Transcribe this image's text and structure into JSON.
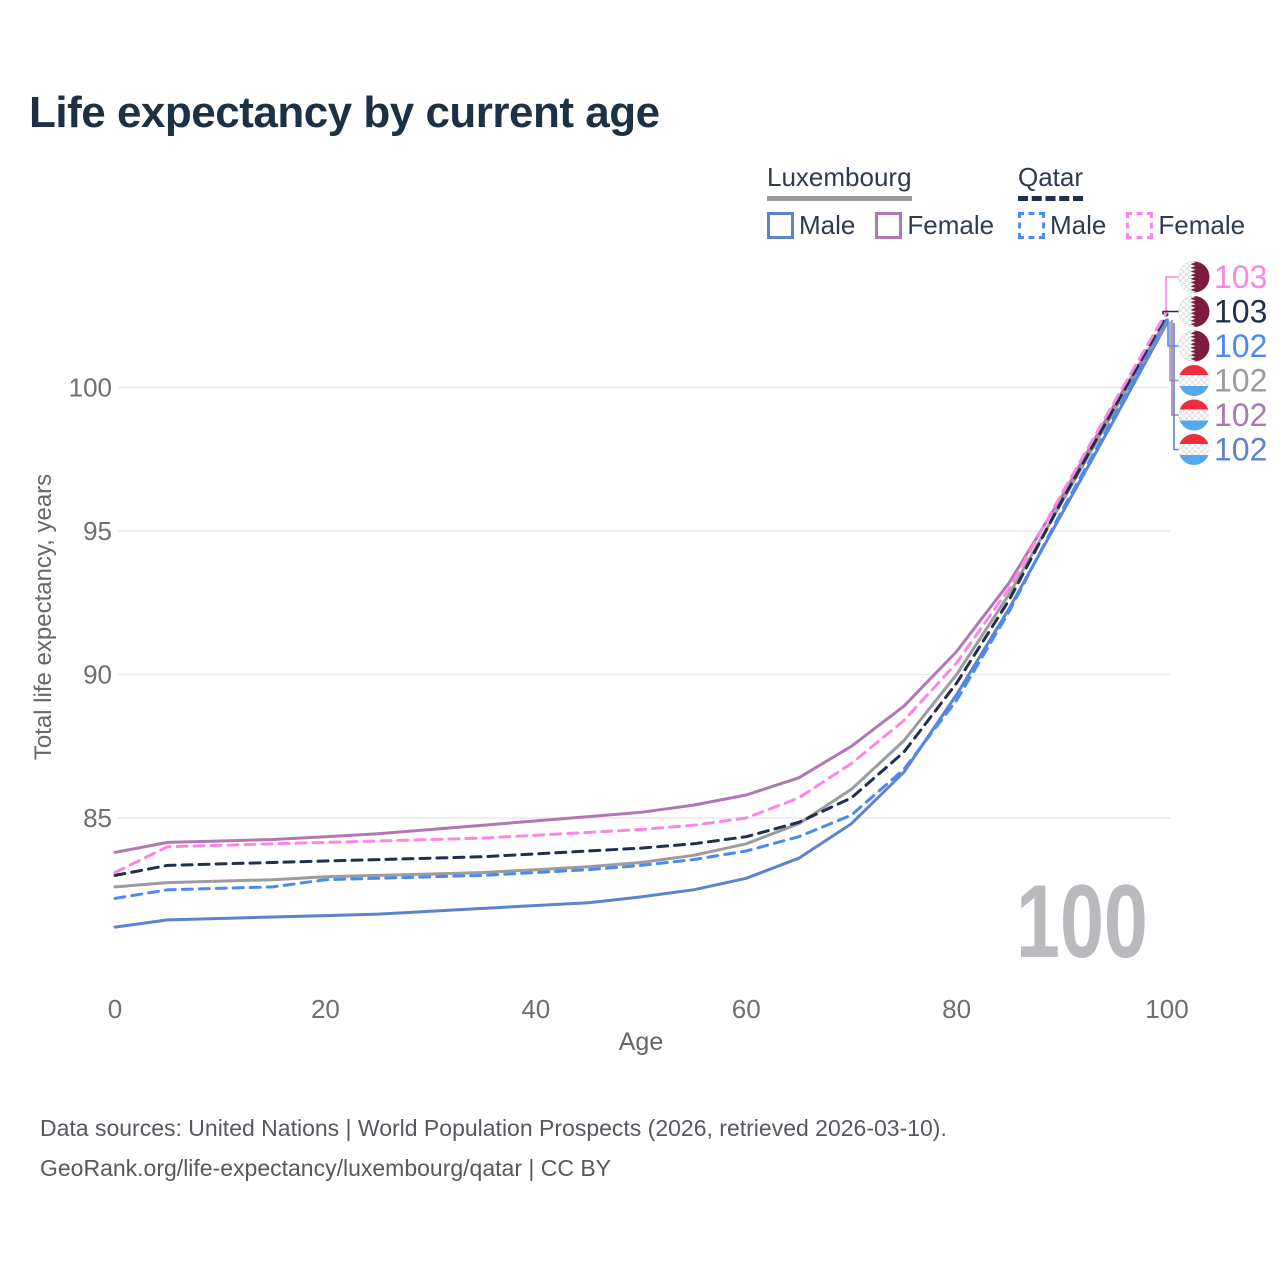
{
  "title": "Life expectancy by current age",
  "legend": {
    "groups": [
      {
        "label": "Luxembourg",
        "line_style": "solid",
        "underline_color": "#9b9ba0",
        "items": [
          {
            "label": "Male",
            "color": "#5b84cc"
          },
          {
            "label": "Female",
            "color": "#b077b4"
          }
        ]
      },
      {
        "label": "Qatar",
        "line_style": "dashed",
        "underline_color": "#20304c",
        "items": [
          {
            "label": "Male",
            "color": "#4b8bf0"
          },
          {
            "label": "Female",
            "color": "#fb86e4"
          }
        ]
      }
    ]
  },
  "chart_data": {
    "type": "line",
    "title": "Life expectancy by current age",
    "xlabel": "Age",
    "ylabel": "Total life expectancy, years",
    "xlim": [
      0,
      100
    ],
    "ylim": [
      80.5,
      104
    ],
    "xticks": [
      0,
      20,
      40,
      60,
      80,
      100
    ],
    "yticks": [
      85,
      90,
      95,
      100
    ],
    "grid": true,
    "legend_position": "top-right",
    "x": [
      0,
      5,
      10,
      15,
      20,
      25,
      30,
      35,
      40,
      45,
      50,
      55,
      60,
      65,
      70,
      75,
      80,
      85,
      90,
      95,
      100
    ],
    "series": [
      {
        "name": "Luxembourg Male",
        "country": "Luxembourg",
        "sex": "Male",
        "color": "#5b84cc",
        "dash": "solid",
        "values": [
          81.2,
          81.45,
          81.5,
          81.55,
          81.6,
          81.65,
          81.75,
          81.85,
          81.95,
          82.05,
          82.25,
          82.5,
          82.9,
          83.6,
          84.8,
          86.6,
          89.3,
          92.3,
          95.6,
          98.9,
          102.25
        ]
      },
      {
        "name": "Luxembourg Total",
        "country": "Luxembourg",
        "sex": "Total",
        "color": "#9b9ba0",
        "dash": "solid",
        "values": [
          82.6,
          82.75,
          82.8,
          82.85,
          82.95,
          83.0,
          83.05,
          83.1,
          83.2,
          83.3,
          83.45,
          83.7,
          84.1,
          84.8,
          86.0,
          87.7,
          90.0,
          92.8,
          96.0,
          99.2,
          102.3
        ]
      },
      {
        "name": "Luxembourg Female",
        "country": "Luxembourg",
        "sex": "Female",
        "color": "#b077b4",
        "dash": "solid",
        "values": [
          83.8,
          84.15,
          84.2,
          84.25,
          84.35,
          84.45,
          84.6,
          84.75,
          84.9,
          85.05,
          85.2,
          85.45,
          85.8,
          86.4,
          87.5,
          88.9,
          90.8,
          93.2,
          96.2,
          99.4,
          102.35
        ]
      },
      {
        "name": "Qatar Male",
        "country": "Qatar",
        "sex": "Male",
        "color": "#4b8bf0",
        "dash": "dashed",
        "values": [
          82.2,
          82.5,
          82.55,
          82.6,
          82.85,
          82.9,
          82.95,
          83.0,
          83.1,
          83.2,
          83.35,
          83.55,
          83.85,
          84.35,
          85.1,
          86.7,
          89.1,
          92.2,
          95.7,
          99.0,
          102.4
        ]
      },
      {
        "name": "Qatar Total",
        "country": "Qatar",
        "sex": "Total",
        "color": "#20304c",
        "dash": "dashed",
        "values": [
          83.0,
          83.35,
          83.4,
          83.45,
          83.5,
          83.55,
          83.6,
          83.65,
          83.75,
          83.85,
          83.95,
          84.1,
          84.35,
          84.85,
          85.7,
          87.3,
          89.7,
          92.6,
          96.05,
          99.3,
          102.55
        ]
      },
      {
        "name": "Qatar Female",
        "country": "Qatar",
        "sex": "Female",
        "color": "#fb86e4",
        "dash": "dashed",
        "values": [
          83.1,
          84.0,
          84.05,
          84.1,
          84.15,
          84.2,
          84.25,
          84.3,
          84.4,
          84.5,
          84.6,
          84.75,
          85.0,
          85.7,
          86.9,
          88.4,
          90.4,
          93.0,
          96.3,
          99.5,
          102.65
        ]
      }
    ],
    "end_labels": [
      {
        "value": "103",
        "series_index": 5,
        "flag": "qatar",
        "color": "#fb86e4"
      },
      {
        "value": "103",
        "series_index": 4,
        "flag": "qatar",
        "color": "#20304c"
      },
      {
        "value": "102",
        "series_index": 3,
        "flag": "qatar",
        "color": "#4b8bf0"
      },
      {
        "value": "102",
        "series_index": 1,
        "flag": "luxembourg",
        "color": "#9b9ba0"
      },
      {
        "value": "102",
        "series_index": 2,
        "flag": "luxembourg",
        "color": "#a87ab2"
      },
      {
        "value": "102",
        "series_index": 0,
        "flag": "luxembourg",
        "color": "#5b84cc"
      }
    ],
    "watermark": "100",
    "flag_colors": {
      "qatar_maroon": "#7d1a3f",
      "lux_red": "#ee2e3e",
      "lux_blue": "#57a8e8"
    },
    "grid_color": "#e9e9ed",
    "tick_color": "#6e6e73"
  },
  "footer": {
    "line1": "Data sources: United Nations | World Population Prospects (2026, retrieved 2026-03-10).",
    "line2": "GeoRank.org/life-expectancy/luxembourg/qatar | CC BY"
  }
}
